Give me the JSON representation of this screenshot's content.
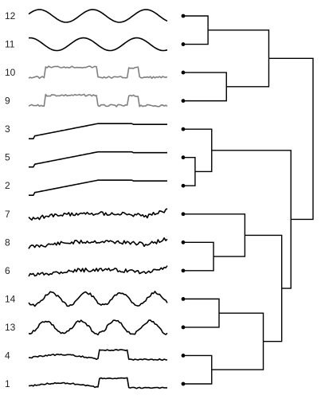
{
  "rows": [
    {
      "label": "12",
      "color": "#000000",
      "shape": "smooth"
    },
    {
      "label": "11",
      "color": "#000000",
      "shape": "smooth"
    },
    {
      "label": "10",
      "color": "#808080",
      "shape": "square"
    },
    {
      "label": "9",
      "color": "#808080",
      "shape": "square"
    },
    {
      "label": "3",
      "color": "#000000",
      "shape": "ramp"
    },
    {
      "label": "5",
      "color": "#000000",
      "shape": "ramp"
    },
    {
      "label": "2",
      "color": "#000000",
      "shape": "ramp"
    },
    {
      "label": "7",
      "color": "#000000",
      "shape": "noisy-rise"
    },
    {
      "label": "8",
      "color": "#000000",
      "shape": "noisy-rise"
    },
    {
      "label": "6",
      "color": "#000000",
      "shape": "noisy-rise"
    },
    {
      "label": "14",
      "color": "#000000",
      "shape": "cyclic"
    },
    {
      "label": "13",
      "color": "#000000",
      "shape": "cyclic"
    },
    {
      "label": "4",
      "color": "#000000",
      "shape": "step"
    },
    {
      "label": "1",
      "color": "#000000",
      "shape": "step"
    }
  ],
  "dendrogram": {
    "merges": [
      {
        "children": [
          "12",
          "11"
        ],
        "height": 1
      },
      {
        "children": [
          "10",
          "9"
        ],
        "height": 2
      },
      {
        "children": [
          "5",
          "2"
        ],
        "height": 0.3
      },
      {
        "children": [
          "3",
          "m3"
        ],
        "height": 1.2
      },
      {
        "children": [
          "8",
          "6"
        ],
        "height": 1.3
      },
      {
        "children": [
          "7",
          "m5"
        ],
        "height": 3
      },
      {
        "children": [
          "14",
          "13"
        ],
        "height": 1.6
      },
      {
        "children": [
          "4",
          "1"
        ],
        "height": 1.2
      },
      {
        "children": [
          "m7",
          "m8"
        ],
        "height": 4
      },
      {
        "children": [
          "m6",
          "m9"
        ],
        "height": 5
      },
      {
        "children": [
          "m4",
          "m10"
        ],
        "height": 5.5
      },
      {
        "children": [
          "m1",
          "m2"
        ],
        "height": 4.3
      },
      {
        "children": [
          "m12",
          "m11"
        ],
        "height": 6.7
      }
    ]
  }
}
